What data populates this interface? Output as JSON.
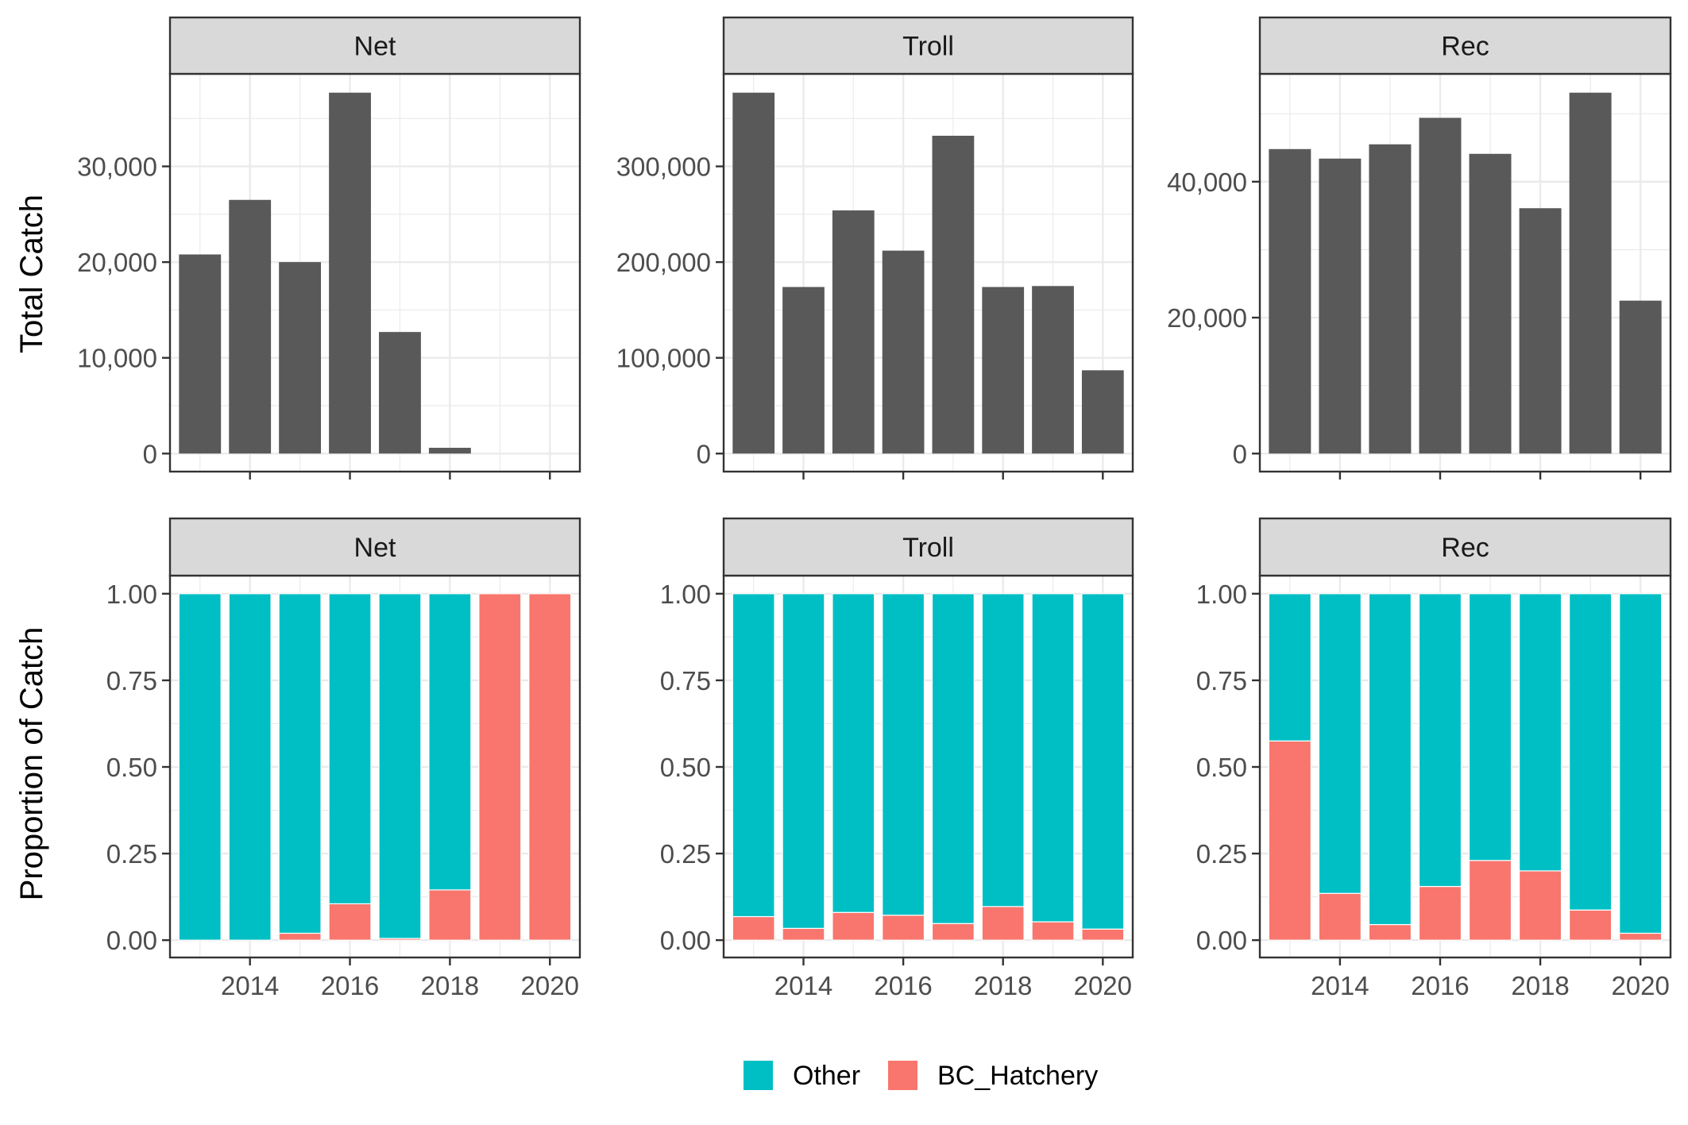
{
  "colors": {
    "total_bar": "#595959",
    "Other": "#00BFC4",
    "BC_Hatchery": "#F8766D",
    "strip_bg": "#D9D9D9",
    "grid": "#EBEBEB",
    "axis_text": "#4D4D4D",
    "title_text": "#000000"
  },
  "legend": {
    "items": [
      {
        "key": "Other",
        "label": "Other"
      },
      {
        "key": "BC_Hatchery",
        "label": "BC_Hatchery"
      }
    ]
  },
  "chart_data": [
    {
      "type": "bar",
      "row_label": "Total Catch",
      "facet": "Net",
      "x": [
        2013,
        2014,
        2015,
        2016,
        2017,
        2018,
        2019,
        2020
      ],
      "values": [
        20800,
        26500,
        20000,
        37700,
        12700,
        600,
        0,
        0
      ],
      "ylim": [
        0,
        40000
      ],
      "yticks": [
        0,
        10000,
        20000,
        30000
      ],
      "ytick_labels": [
        "0",
        "10,000",
        "20,000",
        "30,000"
      ],
      "xticks": [
        2014,
        2016,
        2018,
        2020
      ],
      "xtick_labels_shown": false,
      "grid": true
    },
    {
      "type": "bar",
      "row_label": "Total Catch",
      "facet": "Troll",
      "x": [
        2013,
        2014,
        2015,
        2016,
        2017,
        2018,
        2019,
        2020
      ],
      "values": [
        377000,
        174000,
        254000,
        212000,
        332000,
        174000,
        175000,
        87000
      ],
      "ylim": [
        0,
        400000
      ],
      "yticks": [
        0,
        100000,
        200000,
        300000
      ],
      "ytick_labels": [
        "0",
        "100,000",
        "200,000",
        "300,000"
      ],
      "xticks": [
        2014,
        2016,
        2018,
        2020
      ],
      "xtick_labels_shown": false,
      "grid": true
    },
    {
      "type": "bar",
      "row_label": "Total Catch",
      "facet": "Rec",
      "x": [
        2013,
        2014,
        2015,
        2016,
        2017,
        2018,
        2019,
        2020
      ],
      "values": [
        44800,
        43400,
        45500,
        49400,
        44100,
        36100,
        53100,
        22500
      ],
      "ylim": [
        0,
        55000
      ],
      "yticks": [
        0,
        20000,
        40000
      ],
      "ytick_labels": [
        "0",
        "20,000",
        "40,000"
      ],
      "xticks": [
        2014,
        2016,
        2018,
        2020
      ],
      "xtick_labels_shown": false,
      "grid": true
    },
    {
      "type": "bar",
      "stacked": true,
      "row_label": "Proportion of Catch",
      "facet": "Net",
      "x": [
        2013,
        2014,
        2015,
        2016,
        2017,
        2018,
        2019,
        2020
      ],
      "series": [
        {
          "name": "BC_Hatchery",
          "values": [
            0.0,
            0.0,
            0.02,
            0.105,
            0.005,
            0.145,
            1.0,
            1.0
          ]
        },
        {
          "name": "Other",
          "values": [
            1.0,
            1.0,
            0.98,
            0.895,
            0.995,
            0.855,
            0.0,
            0.0
          ]
        }
      ],
      "ylim": [
        0,
        1.0
      ],
      "yticks": [
        0,
        0.25,
        0.5,
        0.75,
        1.0
      ],
      "ytick_labels": [
        "0.00",
        "0.25",
        "0.50",
        "0.75",
        "1.00"
      ],
      "xticks": [
        2014,
        2016,
        2018,
        2020
      ],
      "xtick_labels": [
        "2014",
        "2016",
        "2018",
        "2020"
      ],
      "grid": true
    },
    {
      "type": "bar",
      "stacked": true,
      "row_label": "Proportion of Catch",
      "facet": "Troll",
      "x": [
        2013,
        2014,
        2015,
        2016,
        2017,
        2018,
        2019,
        2020
      ],
      "series": [
        {
          "name": "BC_Hatchery",
          "values": [
            0.068,
            0.034,
            0.08,
            0.072,
            0.048,
            0.097,
            0.053,
            0.032
          ]
        },
        {
          "name": "Other",
          "values": [
            0.932,
            0.966,
            0.92,
            0.928,
            0.952,
            0.903,
            0.947,
            0.968
          ]
        }
      ],
      "ylim": [
        0,
        1.0
      ],
      "yticks": [
        0,
        0.25,
        0.5,
        0.75,
        1.0
      ],
      "ytick_labels": [
        "0.00",
        "0.25",
        "0.50",
        "0.75",
        "1.00"
      ],
      "xticks": [
        2014,
        2016,
        2018,
        2020
      ],
      "xtick_labels": [
        "2014",
        "2016",
        "2018",
        "2020"
      ],
      "grid": true
    },
    {
      "type": "bar",
      "stacked": true,
      "row_label": "Proportion of Catch",
      "facet": "Rec",
      "x": [
        2013,
        2014,
        2015,
        2016,
        2017,
        2018,
        2019,
        2020
      ],
      "series": [
        {
          "name": "BC_Hatchery",
          "values": [
            0.575,
            0.135,
            0.045,
            0.155,
            0.23,
            0.2,
            0.087,
            0.02
          ]
        },
        {
          "name": "Other",
          "values": [
            0.425,
            0.865,
            0.955,
            0.845,
            0.77,
            0.8,
            0.913,
            0.98
          ]
        }
      ],
      "ylim": [
        0,
        1.0
      ],
      "yticks": [
        0,
        0.25,
        0.5,
        0.75,
        1.0
      ],
      "ytick_labels": [
        "0.00",
        "0.25",
        "0.50",
        "0.75",
        "1.00"
      ],
      "xticks": [
        2014,
        2016,
        2018,
        2020
      ],
      "xtick_labels": [
        "2014",
        "2016",
        "2018",
        "2020"
      ],
      "grid": true
    }
  ]
}
